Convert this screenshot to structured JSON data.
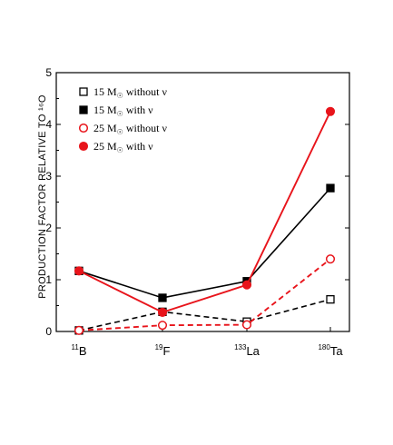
{
  "chart_data": {
    "type": "line",
    "title": "",
    "xlabel": "",
    "ylabel": "PRODUCTION FACTOR RELATIVE TO ¹⁶O",
    "ylim": [
      0,
      5
    ],
    "yticks": [
      "0",
      "1",
      "2",
      "3",
      "4",
      "5"
    ],
    "categories": [
      {
        "sup": "11",
        "label": "B"
      },
      {
        "sup": "19",
        "label": "F"
      },
      {
        "sup": "133",
        "label": "La"
      },
      {
        "sup": "180",
        "label": "Ta"
      }
    ],
    "legend_position": "top-left",
    "series": [
      {
        "name": "15 M☉ without ν",
        "name_parts": [
          "15 M",
          "☉",
          " without ν"
        ],
        "color": "#000000",
        "dash": true,
        "marker": "square-open",
        "values": [
          0.02,
          0.38,
          0.19,
          0.62
        ]
      },
      {
        "name": "15 M☉ with ν",
        "name_parts": [
          "15 M",
          "☉",
          " with ν"
        ],
        "color": "#000000",
        "dash": false,
        "marker": "square-filled",
        "values": [
          1.17,
          0.65,
          0.97,
          2.77
        ]
      },
      {
        "name": "25 M☉ without ν",
        "name_parts": [
          "25 M",
          "☉",
          " without ν"
        ],
        "color": "#e8141b",
        "dash": true,
        "marker": "circle-open",
        "values": [
          0.02,
          0.12,
          0.13,
          1.4
        ]
      },
      {
        "name": "25 M☉ with ν",
        "name_parts": [
          "25 M",
          "☉",
          " with ν"
        ],
        "color": "#e8141b",
        "dash": false,
        "marker": "circle-filled",
        "values": [
          1.17,
          0.37,
          0.9,
          4.25
        ]
      }
    ]
  }
}
